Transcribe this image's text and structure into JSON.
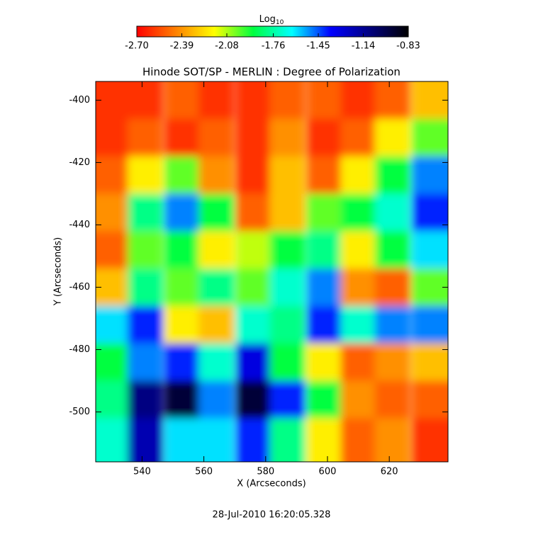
{
  "chart_data": {
    "type": "heatmap",
    "title": "Hinode SOT/SP - MERLIN : Degree of Polarization",
    "colorbar_label": {
      "base": "Log",
      "sub": "10"
    },
    "x_label": "X (Arcseconds)",
    "y_label": "Y (Arcseconds)",
    "footer": "28-Jul-2010 16:20:05.328",
    "colormap": [
      "#ff0000",
      "#ff8000",
      "#ffff00",
      "#00ff40",
      "#00ffff",
      "#0000ff",
      "#000080",
      "#000000"
    ],
    "clim": [
      -2.7,
      -0.83
    ],
    "cticks": [
      {
        "value": -2.7,
        "label": "-2.70"
      },
      {
        "value": -2.39,
        "label": "-2.39"
      },
      {
        "value": -2.08,
        "label": "-2.08"
      },
      {
        "value": -1.76,
        "label": "-1.76"
      },
      {
        "value": -1.45,
        "label": "-1.45"
      },
      {
        "value": -1.14,
        "label": "-1.14"
      },
      {
        "value": -0.83,
        "label": "-0.83"
      }
    ],
    "xlim": [
      525,
      639
    ],
    "ylim": [
      -516,
      -394
    ],
    "xticks": [
      540,
      560,
      580,
      600,
      620
    ],
    "yticks": [
      -400,
      -420,
      -440,
      -460,
      -480,
      -500
    ],
    "x": [
      530,
      541,
      553,
      564,
      576,
      587,
      599,
      610,
      621,
      633
    ],
    "y": [
      -400,
      -412,
      -424,
      -436,
      -448,
      -460,
      -472,
      -484,
      -496,
      -508
    ],
    "z": [
      [
        -2.6,
        -2.6,
        -2.5,
        -2.6,
        -2.6,
        -2.5,
        -2.5,
        -2.6,
        -2.5,
        -2.3
      ],
      [
        -2.6,
        -2.5,
        -2.6,
        -2.5,
        -2.6,
        -2.4,
        -2.6,
        -2.5,
        -2.2,
        -2.0
      ],
      [
        -2.5,
        -2.2,
        -2.0,
        -2.4,
        -2.6,
        -2.3,
        -2.5,
        -2.2,
        -1.9,
        -1.5
      ],
      [
        -2.4,
        -1.8,
        -1.5,
        -1.9,
        -2.5,
        -2.3,
        -2.0,
        -1.9,
        -1.7,
        -1.4
      ],
      [
        -2.5,
        -2.0,
        -1.9,
        -2.2,
        -2.1,
        -1.9,
        -1.8,
        -2.2,
        -1.9,
        -1.6
      ],
      [
        -2.3,
        -1.8,
        -2.0,
        -1.8,
        -2.0,
        -1.7,
        -1.5,
        -2.4,
        -2.5,
        -2.0
      ],
      [
        -1.6,
        -1.4,
        -2.2,
        -2.3,
        -1.7,
        -1.8,
        -1.4,
        -1.7,
        -1.5,
        -1.5
      ],
      [
        -1.9,
        -1.5,
        -1.4,
        -1.7,
        -1.3,
        -1.9,
        -2.2,
        -2.5,
        -2.4,
        -2.3
      ],
      [
        -1.8,
        -1.1,
        -0.95,
        -1.5,
        -0.95,
        -1.4,
        -1.9,
        -2.4,
        -2.5,
        -2.5
      ],
      [
        -1.7,
        -1.2,
        -1.6,
        -1.6,
        -1.4,
        -1.8,
        -2.2,
        -2.5,
        -2.4,
        -2.6
      ]
    ]
  }
}
